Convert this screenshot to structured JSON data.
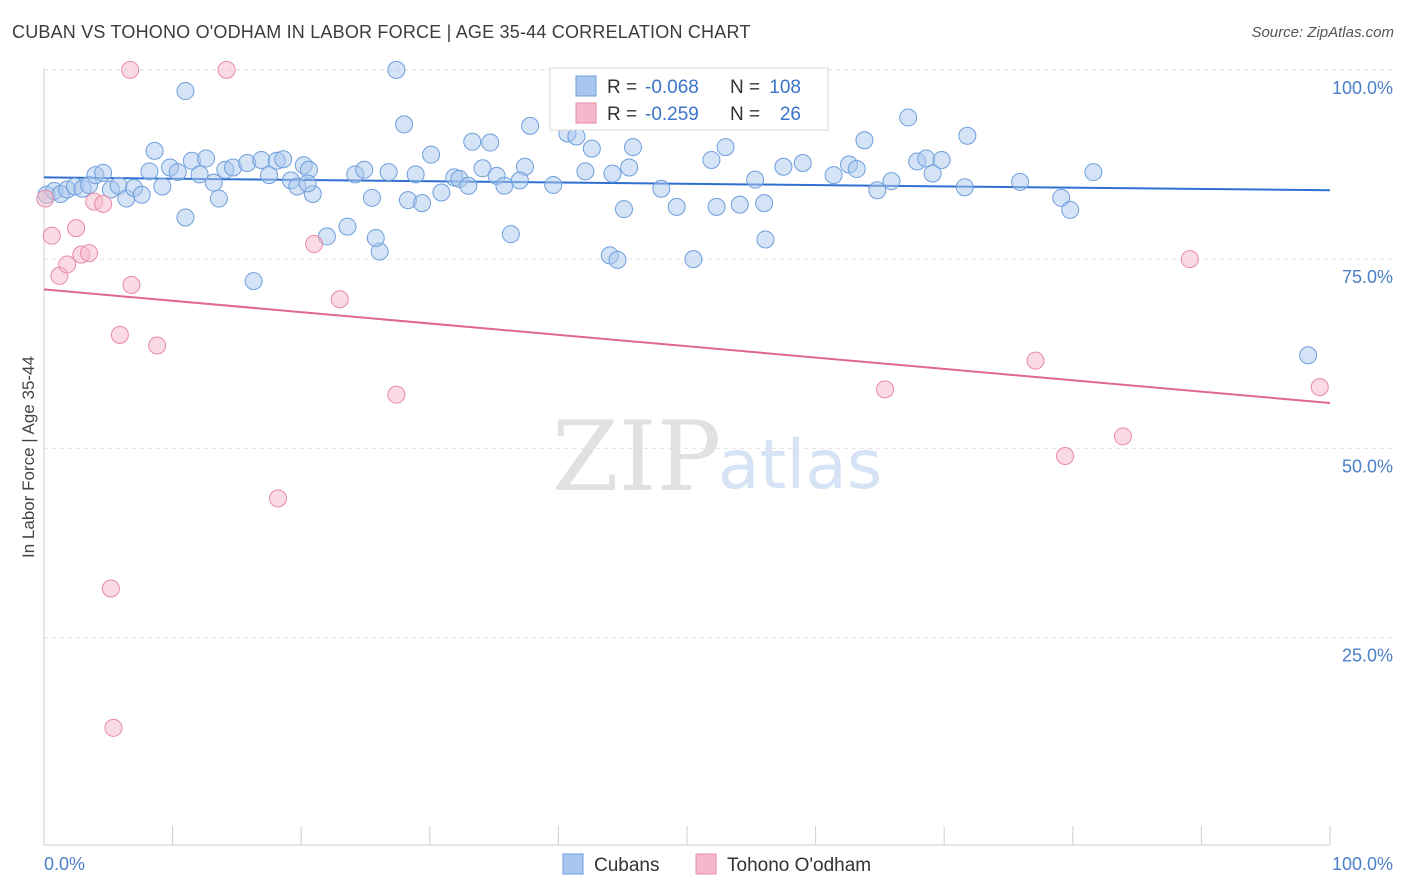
{
  "header": {
    "title": "CUBAN VS TOHONO O'ODHAM IN LABOR FORCE | AGE 35-44 CORRELATION CHART",
    "source": "Source: ZipAtlas.com"
  },
  "watermark": {
    "zip": "ZIP",
    "atlas": "atlas"
  },
  "legend_top": {
    "rows": [
      {
        "r_label": "R =",
        "r_value": "-0.068",
        "n_label": "N =",
        "n_value": "108",
        "color": "#a9c7ee"
      },
      {
        "r_label": "R =",
        "r_value": "-0.259",
        "n_label": "N =",
        "n_value": "26",
        "color": "#f5b8ca"
      }
    ]
  },
  "chart_data": {
    "type": "scatter",
    "title": "CUBAN VS TOHONO O'ODHAM IN LABOR FORCE | AGE 35-44 CORRELATION CHART",
    "xlabel": "",
    "ylabel": "In Labor Force | Age 35-44",
    "xlim": [
      0,
      100
    ],
    "ylim": [
      0,
      105
    ],
    "x_tick_labels": [
      "0.0%",
      "100.0%"
    ],
    "y_ticks": [
      25,
      50,
      75,
      100
    ],
    "y_tick_labels": [
      "25.0%",
      "50.0%",
      "75.0%",
      "100.0%"
    ],
    "grid": true,
    "legend_position": "top-center",
    "series": [
      {
        "name": "Cubans",
        "color": "#a9c7ee",
        "edge": "#6f9fdc",
        "line_color": "#2f6fcf",
        "trend": {
          "x": [
            0,
            100
          ],
          "y": [
            85.8,
            84.1
          ]
        },
        "points": [
          [
            0.2,
            83.5
          ],
          [
            0.8,
            84.0
          ],
          [
            1.3,
            83.6
          ],
          [
            1.8,
            84.2
          ],
          [
            2.4,
            84.6
          ],
          [
            3.0,
            84.3
          ],
          [
            3.5,
            84.8
          ],
          [
            4.0,
            86.1
          ],
          [
            4.6,
            86.4
          ],
          [
            5.2,
            84.2
          ],
          [
            5.8,
            84.7
          ],
          [
            6.4,
            83.0
          ],
          [
            7.0,
            84.4
          ],
          [
            7.6,
            83.5
          ],
          [
            8.2,
            86.6
          ],
          [
            8.6,
            89.3
          ],
          [
            9.2,
            84.6
          ],
          [
            9.8,
            87.1
          ],
          [
            10.4,
            86.5
          ],
          [
            11.0,
            80.5
          ],
          [
            11.5,
            88.0
          ],
          [
            12.1,
            86.2
          ],
          [
            12.6,
            88.3
          ],
          [
            13.2,
            85.1
          ],
          [
            13.6,
            83.0
          ],
          [
            14.1,
            86.8
          ],
          [
            14.7,
            87.1
          ],
          [
            15.8,
            87.7
          ],
          [
            16.3,
            72.1
          ],
          [
            16.9,
            88.1
          ],
          [
            17.5,
            86.1
          ],
          [
            18.1,
            88.0
          ],
          [
            18.6,
            88.2
          ],
          [
            19.2,
            85.4
          ],
          [
            19.7,
            84.6
          ],
          [
            20.2,
            87.4
          ],
          [
            20.6,
            86.8
          ],
          [
            20.9,
            83.6
          ],
          [
            22.0,
            78.0
          ],
          [
            23.6,
            79.3
          ],
          [
            24.2,
            86.2
          ],
          [
            24.9,
            86.8
          ],
          [
            25.5,
            83.1
          ],
          [
            26.1,
            76.0
          ],
          [
            26.8,
            86.5
          ],
          [
            27.4,
            100.0
          ],
          [
            28.0,
            92.8
          ],
          [
            28.3,
            82.8
          ],
          [
            28.9,
            86.2
          ],
          [
            29.4,
            82.4
          ],
          [
            30.1,
            88.8
          ],
          [
            30.9,
            83.8
          ],
          [
            31.9,
            85.8
          ],
          [
            32.3,
            85.6
          ],
          [
            33.0,
            84.7
          ],
          [
            33.3,
            90.5
          ],
          [
            34.1,
            87.0
          ],
          [
            34.7,
            90.4
          ],
          [
            35.2,
            86.0
          ],
          [
            35.8,
            84.7
          ],
          [
            36.3,
            78.3
          ],
          [
            37.4,
            87.2
          ],
          [
            37.8,
            92.6
          ],
          [
            39.6,
            84.8
          ],
          [
            40.7,
            91.6
          ],
          [
            41.4,
            91.2
          ],
          [
            42.1,
            86.6
          ],
          [
            42.6,
            89.6
          ],
          [
            44.0,
            75.5
          ],
          [
            44.6,
            74.9
          ],
          [
            45.1,
            81.6
          ],
          [
            45.5,
            87.1
          ],
          [
            45.8,
            89.8
          ],
          [
            48.0,
            84.3
          ],
          [
            49.2,
            81.9
          ],
          [
            50.5,
            75.0
          ],
          [
            51.9,
            88.1
          ],
          [
            52.3,
            81.9
          ],
          [
            53.0,
            89.8
          ],
          [
            54.1,
            82.2
          ],
          [
            55.3,
            85.5
          ],
          [
            56.1,
            77.6
          ],
          [
            57.5,
            87.2
          ],
          [
            59.0,
            87.7
          ],
          [
            61.4,
            86.1
          ],
          [
            62.6,
            87.5
          ],
          [
            63.2,
            86.9
          ],
          [
            63.8,
            90.7
          ],
          [
            64.8,
            84.1
          ],
          [
            65.9,
            85.3
          ],
          [
            67.2,
            93.7
          ],
          [
            67.9,
            87.9
          ],
          [
            68.6,
            88.3
          ],
          [
            69.1,
            86.3
          ],
          [
            69.8,
            88.1
          ],
          [
            71.6,
            84.5
          ],
          [
            71.8,
            91.3
          ],
          [
            75.9,
            85.2
          ],
          [
            79.1,
            83.1
          ],
          [
            79.8,
            81.5
          ],
          [
            81.6,
            86.5
          ],
          [
            98.3,
            62.3
          ],
          [
            11.0,
            97.2
          ],
          [
            20.5,
            85.0
          ],
          [
            37.0,
            85.4
          ],
          [
            56.0,
            82.4
          ],
          [
            44.2,
            86.3
          ],
          [
            25.8,
            77.8
          ]
        ]
      },
      {
        "name": "Tohono O'odham",
        "color": "#f5b8ca",
        "edge": "#e88aa6",
        "line_color": "#e0678f",
        "trend": {
          "x": [
            0,
            100
          ],
          "y": [
            71.0,
            56.0
          ]
        },
        "points": [
          [
            0.1,
            83.0
          ],
          [
            0.6,
            78.1
          ],
          [
            1.2,
            72.8
          ],
          [
            1.8,
            74.3
          ],
          [
            2.5,
            79.1
          ],
          [
            2.9,
            75.6
          ],
          [
            3.5,
            75.8
          ],
          [
            3.9,
            82.6
          ],
          [
            4.6,
            82.3
          ],
          [
            5.2,
            31.5
          ],
          [
            5.4,
            13.1
          ],
          [
            5.9,
            65.0
          ],
          [
            6.7,
            100.0
          ],
          [
            6.8,
            71.6
          ],
          [
            8.8,
            63.6
          ],
          [
            14.2,
            100.0
          ],
          [
            18.2,
            43.4
          ],
          [
            21.0,
            77.0
          ],
          [
            23.0,
            69.7
          ],
          [
            27.4,
            57.1
          ],
          [
            65.4,
            57.8
          ],
          [
            77.1,
            61.6
          ],
          [
            79.4,
            49.0
          ],
          [
            83.9,
            51.6
          ],
          [
            89.1,
            75.0
          ],
          [
            99.2,
            58.1
          ]
        ]
      }
    ]
  }
}
